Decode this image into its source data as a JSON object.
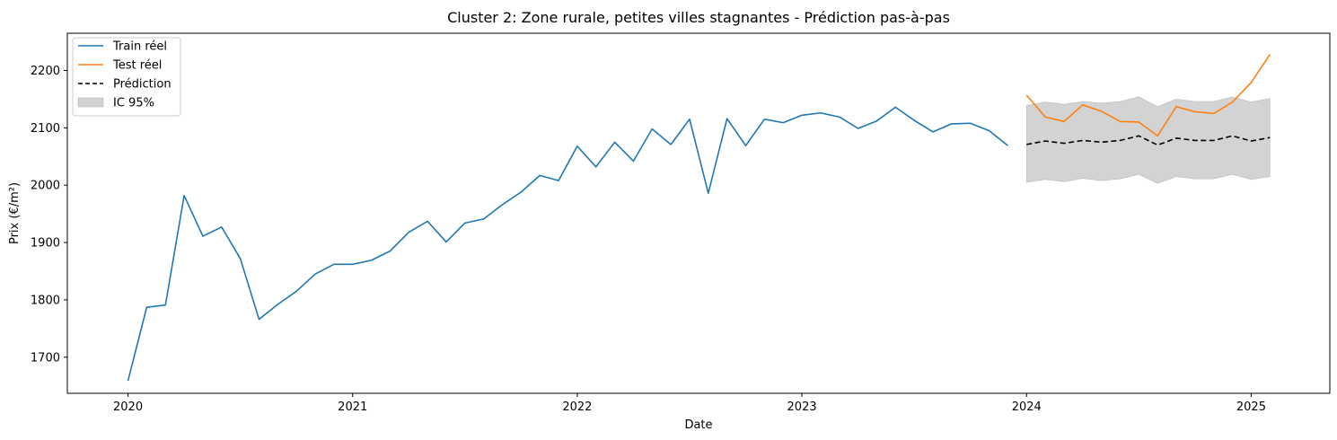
{
  "chart_data": {
    "type": "line",
    "title": "Cluster 2: Zone rurale, petites villes stagnantes - Prédiction pas-à-pas",
    "xlabel": "Date",
    "ylabel": "Prix (€/m²)",
    "xlim": [
      2019.73,
      2025.35
    ],
    "ylim": [
      1637,
      2265
    ],
    "x_ticks": [
      {
        "value": 2020,
        "label": "2020"
      },
      {
        "value": 2021,
        "label": "2021"
      },
      {
        "value": 2022,
        "label": "2022"
      },
      {
        "value": 2023,
        "label": "2023"
      },
      {
        "value": 2024,
        "label": "2024"
      },
      {
        "value": 2025,
        "label": "2025"
      }
    ],
    "y_ticks": [
      {
        "value": 1700,
        "label": "1700"
      },
      {
        "value": 1800,
        "label": "1800"
      },
      {
        "value": 1900,
        "label": "1900"
      },
      {
        "value": 2000,
        "label": "2000"
      },
      {
        "value": 2100,
        "label": "2100"
      },
      {
        "value": 2200,
        "label": "2200"
      }
    ],
    "legend": {
      "position": "top-left",
      "entries": [
        {
          "label": "Train réel",
          "kind": "line",
          "color": "#1f77b4",
          "dash": ""
        },
        {
          "label": "Test réel",
          "kind": "line",
          "color": "#ff7f0e",
          "dash": ""
        },
        {
          "label": "Prédiction",
          "kind": "line",
          "color": "#000000",
          "dash": "5,3"
        },
        {
          "label": "IC 95%",
          "kind": "patch",
          "color": "#d3d3d3",
          "dash": ""
        }
      ]
    },
    "colors": {
      "train": "#1f77b4",
      "test": "#ff7f0e",
      "prediction": "#000000",
      "ci": "#d3d3d3"
    },
    "series": [
      {
        "name": "Train réel",
        "x_start": 2020.0,
        "x_step": 0.08333,
        "values": [
          1659,
          1787,
          1791,
          1982,
          1911,
          1927,
          1872,
          1766,
          1792,
          1815,
          1845,
          1862,
          1862,
          1869,
          1885,
          1918,
          1937,
          1901,
          1934,
          1941,
          1966,
          1988,
          2017,
          2008,
          2068,
          2032,
          2075,
          2042,
          2098,
          2071,
          2115,
          1986,
          2116,
          2069,
          2115,
          2109,
          2122,
          2126,
          2119,
          2099,
          2112,
          2136,
          2113,
          2093,
          2107,
          2108,
          2095,
          2069
        ]
      },
      {
        "name": "Test réel",
        "x_start": 2024.0,
        "x_step": 0.08333,
        "values": [
          2157,
          2119,
          2111,
          2140,
          2129,
          2111,
          2110,
          2086,
          2137,
          2128,
          2125,
          2145,
          2179,
          2228
        ]
      },
      {
        "name": "Prédiction",
        "x_start": 2024.0,
        "x_step": 0.08333,
        "values": [
          2071,
          2077,
          2073,
          2078,
          2075,
          2078,
          2086,
          2070,
          2082,
          2078,
          2078,
          2086,
          2077,
          2083
        ]
      }
    ],
    "ci": {
      "name": "IC 95%",
      "x_start": 2024.0,
      "x_step": 0.08333,
      "lower": [
        2005,
        2010,
        2006,
        2012,
        2008,
        2011,
        2019,
        2003,
        2015,
        2011,
        2011,
        2019,
        2010,
        2015
      ],
      "upper": [
        2139,
        2145,
        2141,
        2146,
        2143,
        2146,
        2154,
        2137,
        2150,
        2146,
        2146,
        2154,
        2145,
        2151
      ]
    }
  }
}
